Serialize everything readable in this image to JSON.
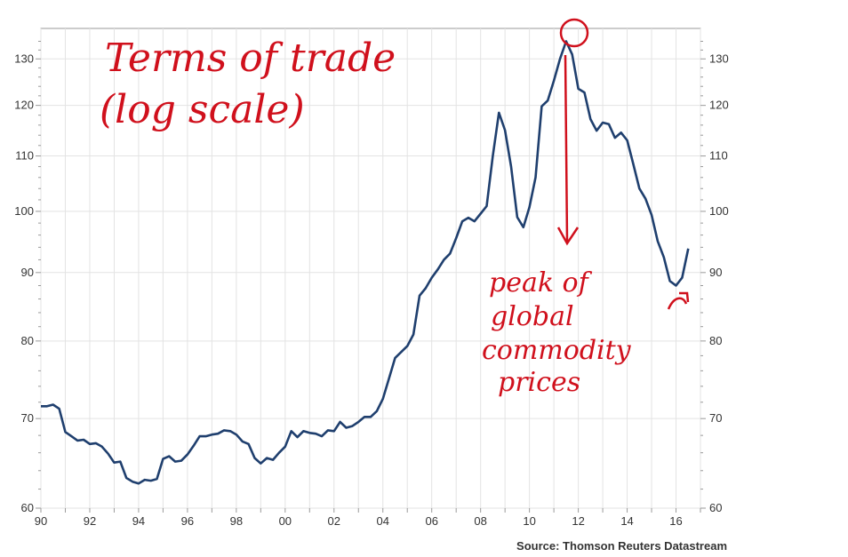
{
  "chart_data": {
    "type": "line",
    "title": "",
    "xlabel": "",
    "ylabel": "",
    "y_scale": "log",
    "xlim": [
      1990,
      2017
    ],
    "ylim": [
      60,
      137
    ],
    "grid": true,
    "x_tick_labels": [
      "90",
      "92",
      "94",
      "96",
      "98",
      "00",
      "02",
      "04",
      "06",
      "08",
      "10",
      "12",
      "14",
      "16"
    ],
    "x_tick_values": [
      1990,
      1992,
      1994,
      1996,
      1998,
      2000,
      2002,
      2004,
      2006,
      2008,
      2010,
      2012,
      2014,
      2016
    ],
    "y_ticks": [
      60,
      70,
      80,
      90,
      100,
      110,
      120,
      130
    ],
    "series": [
      {
        "color": "#1f3f6e",
        "points": [
          [
            1990.0,
            71.5
          ],
          [
            1990.25,
            71.5
          ],
          [
            1990.5,
            71.7
          ],
          [
            1990.75,
            71.2
          ],
          [
            1991.0,
            68.4
          ],
          [
            1991.25,
            67.9
          ],
          [
            1991.5,
            67.4
          ],
          [
            1991.75,
            67.5
          ],
          [
            1992.0,
            67.0
          ],
          [
            1992.25,
            67.1
          ],
          [
            1992.5,
            66.7
          ],
          [
            1992.75,
            65.9
          ],
          [
            1993.0,
            64.9
          ],
          [
            1993.25,
            65.0
          ],
          [
            1993.5,
            63.2
          ],
          [
            1993.75,
            62.8
          ],
          [
            1994.0,
            62.6
          ],
          [
            1994.25,
            63.0
          ],
          [
            1994.5,
            62.9
          ],
          [
            1994.75,
            63.1
          ],
          [
            1995.0,
            65.3
          ],
          [
            1995.25,
            65.6
          ],
          [
            1995.5,
            65.0
          ],
          [
            1995.75,
            65.1
          ],
          [
            1996.0,
            65.8
          ],
          [
            1996.25,
            66.8
          ],
          [
            1996.5,
            67.9
          ],
          [
            1996.75,
            67.9
          ],
          [
            1997.0,
            68.1
          ],
          [
            1997.25,
            68.2
          ],
          [
            1997.5,
            68.6
          ],
          [
            1997.75,
            68.5
          ],
          [
            1998.0,
            68.1
          ],
          [
            1998.25,
            67.3
          ],
          [
            1998.5,
            67.0
          ],
          [
            1998.75,
            65.4
          ],
          [
            1999.0,
            64.8
          ],
          [
            1999.25,
            65.4
          ],
          [
            1999.5,
            65.2
          ],
          [
            1999.75,
            66.0
          ],
          [
            2000.0,
            66.7
          ],
          [
            2000.25,
            68.5
          ],
          [
            2000.5,
            67.8
          ],
          [
            2000.75,
            68.5
          ],
          [
            2001.0,
            68.3
          ],
          [
            2001.25,
            68.2
          ],
          [
            2001.5,
            67.9
          ],
          [
            2001.75,
            68.6
          ],
          [
            2002.0,
            68.5
          ],
          [
            2002.25,
            69.6
          ],
          [
            2002.5,
            68.9
          ],
          [
            2002.75,
            69.1
          ],
          [
            2003.0,
            69.6
          ],
          [
            2003.25,
            70.2
          ],
          [
            2003.5,
            70.2
          ],
          [
            2003.75,
            70.9
          ],
          [
            2004.0,
            72.4
          ],
          [
            2004.25,
            75.0
          ],
          [
            2004.5,
            77.7
          ],
          [
            2004.75,
            78.5
          ],
          [
            2005.0,
            79.3
          ],
          [
            2005.25,
            80.9
          ],
          [
            2005.5,
            86.5
          ],
          [
            2005.75,
            87.6
          ],
          [
            2006.0,
            89.2
          ],
          [
            2006.25,
            90.5
          ],
          [
            2006.5,
            92.0
          ],
          [
            2006.75,
            93.0
          ],
          [
            2007.0,
            95.5
          ],
          [
            2007.25,
            98.3
          ],
          [
            2007.5,
            98.9
          ],
          [
            2007.75,
            98.3
          ],
          [
            2008.0,
            99.6
          ],
          [
            2008.25,
            100.9
          ],
          [
            2008.5,
            110.0
          ],
          [
            2008.75,
            118.5
          ],
          [
            2009.0,
            115.0
          ],
          [
            2009.25,
            108.0
          ],
          [
            2009.5,
            99.0
          ],
          [
            2009.75,
            97.3
          ],
          [
            2010.0,
            100.7
          ],
          [
            2010.25,
            106.0
          ],
          [
            2010.5,
            119.8
          ],
          [
            2010.75,
            121.0
          ],
          [
            2011.0,
            125.2
          ],
          [
            2011.25,
            130.0
          ],
          [
            2011.5,
            134.0
          ],
          [
            2011.75,
            131.0
          ],
          [
            2012.0,
            123.5
          ],
          [
            2012.25,
            122.7
          ],
          [
            2012.5,
            117.2
          ],
          [
            2012.75,
            114.9
          ],
          [
            2013.0,
            116.5
          ],
          [
            2013.25,
            116.2
          ],
          [
            2013.5,
            113.5
          ],
          [
            2013.75,
            114.5
          ],
          [
            2014.0,
            113.0
          ],
          [
            2014.25,
            108.5
          ],
          [
            2014.5,
            104.0
          ],
          [
            2014.75,
            102.2
          ],
          [
            2015.0,
            99.4
          ],
          [
            2015.25,
            95.0
          ],
          [
            2015.5,
            92.4
          ],
          [
            2015.75,
            88.7
          ],
          [
            2016.0,
            88.0
          ],
          [
            2016.25,
            89.2
          ],
          [
            2016.5,
            93.8
          ]
        ]
      }
    ],
    "source": "Source: Thomson Reuters Datastream"
  },
  "annotations": {
    "title_line1": "Terms of trade",
    "title_line2": "(log scale)",
    "peak_note": [
      "peak of",
      "global",
      "commodity",
      "prices"
    ],
    "color": "#d0101c"
  }
}
